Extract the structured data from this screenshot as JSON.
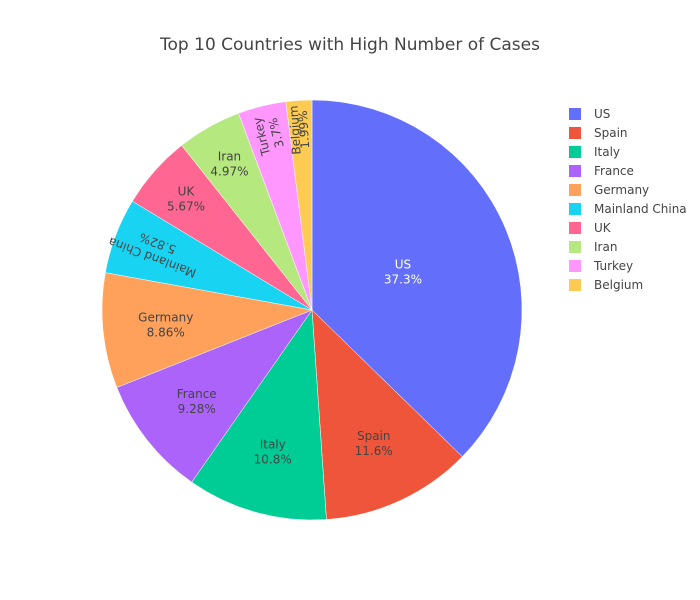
{
  "chart_data": {
    "type": "pie",
    "title": "Top 10 Countries with High Number of Cases",
    "legend_position": "right",
    "slices": [
      {
        "name": "US",
        "percent": 37.3,
        "label_line1": "US",
        "label_line2": "37.3%",
        "color": "#636EFA",
        "label_color": "#ffffff",
        "label_orientation": "horizontal"
      },
      {
        "name": "Spain",
        "percent": 11.6,
        "label_line1": "Spain",
        "label_line2": "11.6%",
        "color": "#EF553B",
        "label_color": "#444444",
        "label_orientation": "horizontal"
      },
      {
        "name": "Italy",
        "percent": 10.8,
        "label_line1": "Italy",
        "label_line2": "10.8%",
        "color": "#00CC96",
        "label_color": "#444444",
        "label_orientation": "horizontal"
      },
      {
        "name": "France",
        "percent": 9.28,
        "label_line1": "France",
        "label_line2": "9.28%",
        "color": "#AB63FA",
        "label_color": "#444444",
        "label_orientation": "horizontal"
      },
      {
        "name": "Germany",
        "percent": 8.86,
        "label_line1": "Germany",
        "label_line2": "8.86%",
        "color": "#FFA15A",
        "label_color": "#444444",
        "label_orientation": "horizontal"
      },
      {
        "name": "Mainland China",
        "percent": 5.82,
        "label_line1": "Mainland China",
        "label_line2": "5.82%",
        "color": "#19D3F3",
        "label_color": "#444444",
        "label_orientation": "radial"
      },
      {
        "name": "UK",
        "percent": 5.67,
        "label_line1": "UK",
        "label_line2": "5.67%",
        "color": "#FF6692",
        "label_color": "#444444",
        "label_orientation": "horizontal"
      },
      {
        "name": "Iran",
        "percent": 4.97,
        "label_line1": "Iran",
        "label_line2": "4.97%",
        "color": "#B6E880",
        "label_color": "#444444",
        "label_orientation": "horizontal"
      },
      {
        "name": "Turkey",
        "percent": 3.7,
        "label_line1": "Turkey",
        "label_line2": "3.7%",
        "color": "#FF97FF",
        "label_color": "#444444",
        "label_orientation": "radial"
      },
      {
        "name": "Belgium",
        "percent": 1.99,
        "label_line1": "Belgium",
        "label_line2": "1.99%",
        "color": "#FECB52",
        "label_color": "#444444",
        "label_orientation": "radial"
      }
    ]
  }
}
